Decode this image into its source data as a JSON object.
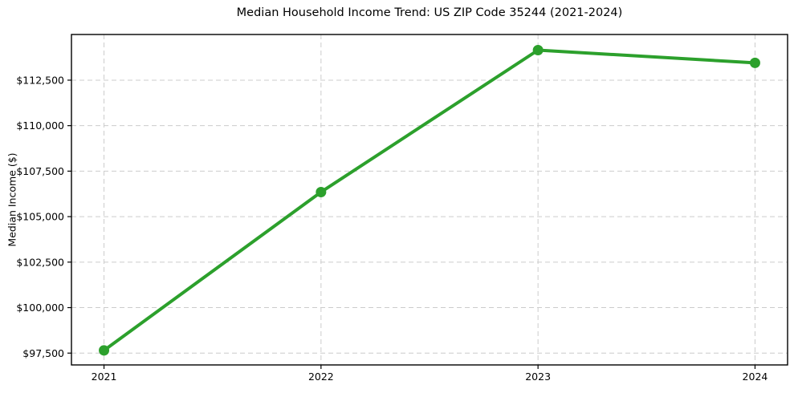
{
  "chart_data": {
    "type": "line",
    "title": "Median Household Income Trend: US ZIP Code 35244 (2021-2024)",
    "xlabel": "",
    "ylabel": "Median Income ($)",
    "x": [
      2021,
      2022,
      2023,
      2024
    ],
    "x_tick_labels": [
      "2021",
      "2022",
      "2023",
      "2024"
    ],
    "series": [
      {
        "name": "Median Household Income",
        "values": [
          97650,
          106350,
          114150,
          113450
        ],
        "color": "#2ca02c"
      }
    ],
    "y_ticks": [
      97500,
      100000,
      102500,
      105000,
      107500,
      110000,
      112500
    ],
    "y_tick_labels": [
      "$97,500",
      "$100,000",
      "$102,500",
      "$105,000",
      "$107,500",
      "$110,000",
      "$112,500"
    ],
    "ylim": [
      96850,
      115010
    ],
    "xlim": [
      2020.85,
      2024.15
    ],
    "grid": true,
    "grid_style": "dashed",
    "legend": "none",
    "colors": {
      "line": "#2ca02c",
      "grid": "#cccccc",
      "axis": "#000000",
      "text": "#000000",
      "background": "#ffffff"
    }
  }
}
